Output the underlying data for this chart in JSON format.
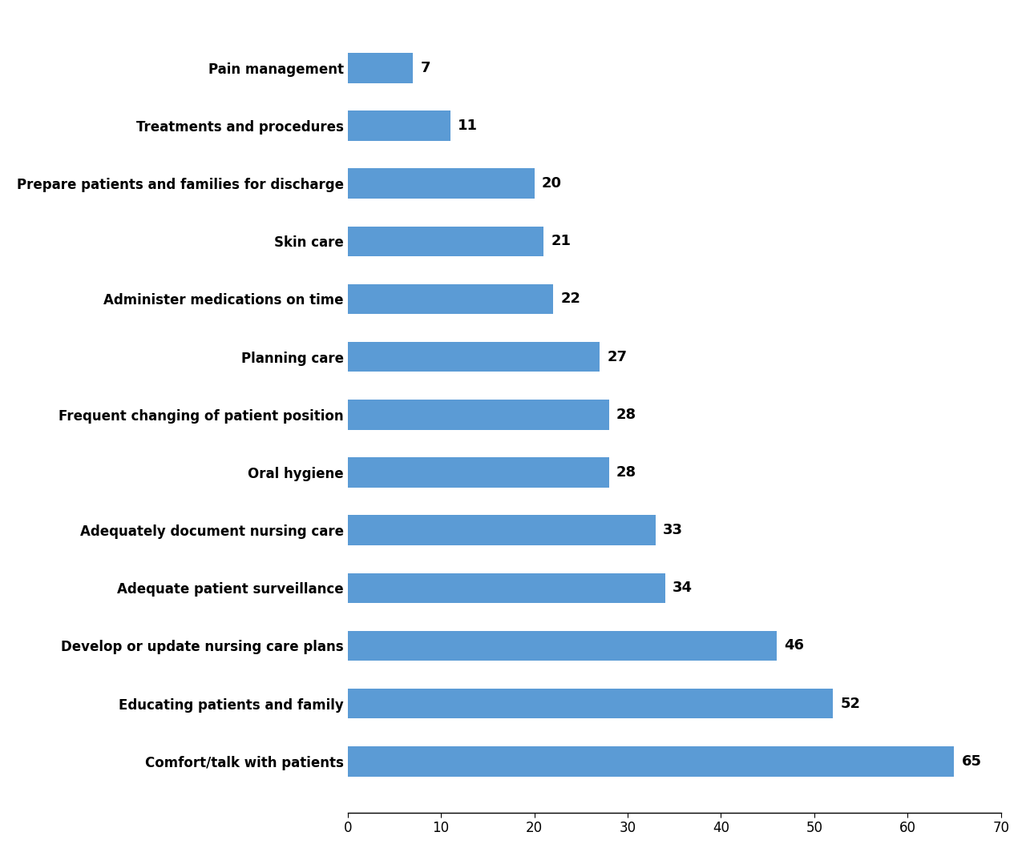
{
  "categories": [
    "Comfort/talk with patients",
    "Educating patients and family",
    "Develop or update nursing care plans",
    "Adequate patient surveillance",
    "Adequately document nursing care",
    "Oral hygiene",
    "Frequent changing of patient position",
    "Planning care",
    "Administer medications on time",
    "Skin care",
    "Prepare patients and families for discharge",
    "Treatments and procedures",
    "Pain management"
  ],
  "values": [
    65,
    52,
    46,
    34,
    33,
    28,
    28,
    27,
    22,
    21,
    20,
    11,
    7
  ],
  "bar_color": "#5b9bd5",
  "xlim": [
    0,
    70
  ],
  "xticks": [
    0,
    10,
    20,
    30,
    40,
    50,
    60,
    70
  ],
  "label_fontsize": 12,
  "tick_fontsize": 12,
  "value_label_fontsize": 13,
  "bar_height": 0.52,
  "background_color": "#ffffff"
}
